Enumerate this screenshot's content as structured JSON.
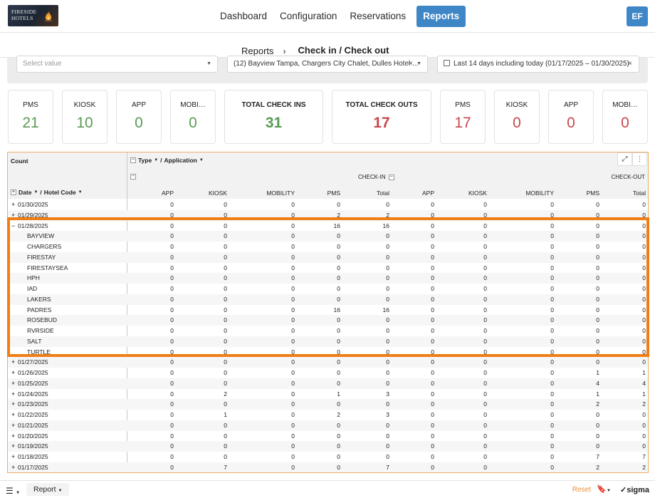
{
  "logo": {
    "text": "FIRESIDE HOTELS"
  },
  "nav": {
    "items": [
      "Dashboard",
      "Configuration",
      "Reservations",
      "Reports"
    ],
    "active": "Reports"
  },
  "user": {
    "initials": "EF"
  },
  "breadcrumb": {
    "parent": "Reports",
    "separator": "›",
    "current": "Check in / Check out"
  },
  "filters": {
    "value_placeholder": "Select value",
    "hotels": "(12) Bayview Tampa, Chargers City Chalet, Dulles Hotel ...",
    "date_range": "Last 14 days including today (01/17/2025 – 01/30/2025)"
  },
  "kpis": {
    "checkin": [
      {
        "label": "PMS",
        "value": "21"
      },
      {
        "label": "KIOSK",
        "value": "10"
      },
      {
        "label": "APP",
        "value": "0"
      },
      {
        "label": "MOBI…",
        "value": "0"
      }
    ],
    "total_checkins": {
      "label": "TOTAL CHECK INS",
      "value": "31"
    },
    "total_checkouts": {
      "label": "TOTAL CHECK OUTS",
      "value": "17"
    },
    "checkout": [
      {
        "label": "PMS",
        "value": "17"
      },
      {
        "label": "KIOSK",
        "value": "0"
      },
      {
        "label": "APP",
        "value": "0"
      },
      {
        "label": "MOBI…",
        "value": "0"
      }
    ]
  },
  "table": {
    "count_label": "Count",
    "type_label": "Type",
    "application_label": "Application",
    "date_label": "Date",
    "hotel_code_label": "Hotel Code",
    "group_checkin": "CHECK-IN",
    "group_checkout": "CHECK-OUT",
    "columns": [
      "APP",
      "KIOSK",
      "MOBILITY",
      "PMS",
      "Total",
      "APP",
      "KIOSK",
      "MOBILITY",
      "PMS",
      "Total"
    ],
    "rows": [
      {
        "label": "01/30/2025",
        "sign": "+",
        "child": false,
        "vals": [
          "0",
          "0",
          "0",
          "0",
          "0",
          "0",
          "0",
          "0",
          "0",
          "0"
        ]
      },
      {
        "label": "01/29/2025",
        "sign": "+",
        "child": false,
        "vals": [
          "0",
          "0",
          "0",
          "2",
          "2",
          "0",
          "0",
          "0",
          "0",
          "0"
        ]
      },
      {
        "label": "01/28/2025",
        "sign": "−",
        "child": false,
        "vals": [
          "0",
          "0",
          "0",
          "16",
          "16",
          "0",
          "0",
          "0",
          "0",
          "0"
        ]
      },
      {
        "label": "BAYVIEW",
        "sign": "",
        "child": true,
        "vals": [
          "0",
          "0",
          "0",
          "0",
          "0",
          "0",
          "0",
          "0",
          "0",
          "0"
        ]
      },
      {
        "label": "CHARGERS",
        "sign": "",
        "child": true,
        "vals": [
          "0",
          "0",
          "0",
          "0",
          "0",
          "0",
          "0",
          "0",
          "0",
          "0"
        ]
      },
      {
        "label": "FIRESTAY",
        "sign": "",
        "child": true,
        "vals": [
          "0",
          "0",
          "0",
          "0",
          "0",
          "0",
          "0",
          "0",
          "0",
          "0"
        ]
      },
      {
        "label": "FIRESTAYSEA",
        "sign": "",
        "child": true,
        "vals": [
          "0",
          "0",
          "0",
          "0",
          "0",
          "0",
          "0",
          "0",
          "0",
          "0"
        ]
      },
      {
        "label": "HPH",
        "sign": "",
        "child": true,
        "vals": [
          "0",
          "0",
          "0",
          "0",
          "0",
          "0",
          "0",
          "0",
          "0",
          "0"
        ]
      },
      {
        "label": "IAD",
        "sign": "",
        "child": true,
        "vals": [
          "0",
          "0",
          "0",
          "0",
          "0",
          "0",
          "0",
          "0",
          "0",
          "0"
        ]
      },
      {
        "label": "LAKERS",
        "sign": "",
        "child": true,
        "vals": [
          "0",
          "0",
          "0",
          "0",
          "0",
          "0",
          "0",
          "0",
          "0",
          "0"
        ]
      },
      {
        "label": "PADRES",
        "sign": "",
        "child": true,
        "vals": [
          "0",
          "0",
          "0",
          "16",
          "16",
          "0",
          "0",
          "0",
          "0",
          "0"
        ]
      },
      {
        "label": "ROSEBUD",
        "sign": "",
        "child": true,
        "vals": [
          "0",
          "0",
          "0",
          "0",
          "0",
          "0",
          "0",
          "0",
          "0",
          "0"
        ]
      },
      {
        "label": "RVRSIDE",
        "sign": "",
        "child": true,
        "vals": [
          "0",
          "0",
          "0",
          "0",
          "0",
          "0",
          "0",
          "0",
          "0",
          "0"
        ]
      },
      {
        "label": "SALT",
        "sign": "",
        "child": true,
        "vals": [
          "0",
          "0",
          "0",
          "0",
          "0",
          "0",
          "0",
          "0",
          "0",
          "0"
        ]
      },
      {
        "label": "TURTLE",
        "sign": "",
        "child": true,
        "vals": [
          "0",
          "0",
          "0",
          "0",
          "0",
          "0",
          "0",
          "0",
          "0",
          "0"
        ]
      },
      {
        "label": "01/27/2025",
        "sign": "+",
        "child": false,
        "vals": [
          "0",
          "0",
          "0",
          "0",
          "0",
          "0",
          "0",
          "0",
          "0",
          "0"
        ]
      },
      {
        "label": "01/26/2025",
        "sign": "+",
        "child": false,
        "vals": [
          "0",
          "0",
          "0",
          "0",
          "0",
          "0",
          "0",
          "0",
          "1",
          "1"
        ]
      },
      {
        "label": "01/25/2025",
        "sign": "+",
        "child": false,
        "vals": [
          "0",
          "0",
          "0",
          "0",
          "0",
          "0",
          "0",
          "0",
          "4",
          "4"
        ]
      },
      {
        "label": "01/24/2025",
        "sign": "+",
        "child": false,
        "vals": [
          "0",
          "2",
          "0",
          "1",
          "3",
          "0",
          "0",
          "0",
          "1",
          "1"
        ]
      },
      {
        "label": "01/23/2025",
        "sign": "+",
        "child": false,
        "vals": [
          "0",
          "0",
          "0",
          "0",
          "0",
          "0",
          "0",
          "0",
          "2",
          "2"
        ]
      },
      {
        "label": "01/22/2025",
        "sign": "+",
        "child": false,
        "vals": [
          "0",
          "1",
          "0",
          "2",
          "3",
          "0",
          "0",
          "0",
          "0",
          "0"
        ]
      },
      {
        "label": "01/21/2025",
        "sign": "+",
        "child": false,
        "vals": [
          "0",
          "0",
          "0",
          "0",
          "0",
          "0",
          "0",
          "0",
          "0",
          "0"
        ]
      },
      {
        "label": "01/20/2025",
        "sign": "+",
        "child": false,
        "vals": [
          "0",
          "0",
          "0",
          "0",
          "0",
          "0",
          "0",
          "0",
          "0",
          "0"
        ]
      },
      {
        "label": "01/19/2025",
        "sign": "+",
        "child": false,
        "vals": [
          "0",
          "0",
          "0",
          "0",
          "0",
          "0",
          "0",
          "0",
          "0",
          "0"
        ]
      },
      {
        "label": "01/18/2025",
        "sign": "+",
        "child": false,
        "vals": [
          "0",
          "0",
          "0",
          "0",
          "0",
          "0",
          "0",
          "0",
          "7",
          "7"
        ]
      },
      {
        "label": "01/17/2025",
        "sign": "+",
        "child": false,
        "vals": [
          "0",
          "7",
          "0",
          "0",
          "7",
          "0",
          "0",
          "0",
          "2",
          "2"
        ]
      }
    ]
  },
  "bottom": {
    "page_label": "Report",
    "reset_label": "Reset",
    "brand": "sigma"
  },
  "colors": {
    "accent": "#3f86c6",
    "highlight": "#f07e15",
    "checkin_value": "#5a9a55",
    "checkout_value": "#c9474e"
  }
}
